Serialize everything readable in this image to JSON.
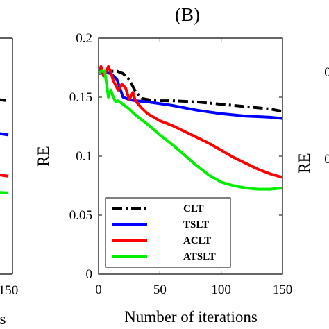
{
  "chart_data": [
    {
      "type": "line",
      "panel_label": "",
      "xlabel": "",
      "ylabel": "",
      "xlim": [
        null,
        150
      ],
      "x_tick_labels": [
        "150"
      ],
      "series": [
        {
          "color": "#000000",
          "dash": "dashdot",
          "points": [
            [
              100,
              0.15
            ],
            [
              150,
              0.147
            ]
          ]
        },
        {
          "color": "#0000ff",
          "dash": "solid",
          "points": [
            [
              100,
              0.122
            ],
            [
              150,
              0.118
            ]
          ]
        },
        {
          "color": "#ff0000",
          "dash": "solid",
          "points": [
            [
              100,
              0.087
            ],
            [
              150,
              0.083
            ]
          ]
        },
        {
          "color": "#00ee00",
          "dash": "solid",
          "points": [
            [
              100,
              0.07
            ],
            [
              150,
              0.069
            ]
          ]
        }
      ],
      "note_partial_xlabel": "s"
    },
    {
      "type": "line",
      "panel_label": "(B)",
      "xlabel": "Number of iterations",
      "ylabel": "RE",
      "xlim": [
        0,
        150
      ],
      "ylim": [
        0,
        0.2
      ],
      "x_ticks": [
        0,
        50,
        100,
        150
      ],
      "y_ticks": [
        0,
        0.05,
        0.1,
        0.15,
        0.2
      ],
      "x_tick_labels": [
        "0",
        "50",
        "100",
        "150"
      ],
      "y_tick_labels": [
        "0",
        "0.05",
        "0.1",
        "0.15",
        "0.2"
      ],
      "legend": {
        "position": "lower-left"
      },
      "series": [
        {
          "name": "CLT",
          "color": "#000000",
          "dash": "dashdot",
          "points": [
            [
              0,
              0.17
            ],
            [
              5,
              0.172
            ],
            [
              10,
              0.172
            ],
            [
              15,
              0.172
            ],
            [
              20,
              0.17
            ],
            [
              25,
              0.165
            ],
            [
              30,
              0.155
            ],
            [
              35,
              0.149
            ],
            [
              45,
              0.147
            ],
            [
              60,
              0.147
            ],
            [
              80,
              0.146
            ],
            [
              100,
              0.144
            ],
            [
              120,
              0.142
            ],
            [
              140,
              0.14
            ],
            [
              150,
              0.138
            ]
          ]
        },
        {
          "name": "TSLT",
          "color": "#0000ff",
          "dash": "solid",
          "points": [
            [
              0,
              0.17
            ],
            [
              5,
              0.171
            ],
            [
              10,
              0.17
            ],
            [
              15,
              0.165
            ],
            [
              20,
              0.15
            ],
            [
              25,
              0.148
            ],
            [
              30,
              0.147
            ],
            [
              40,
              0.146
            ],
            [
              60,
              0.143
            ],
            [
              80,
              0.139
            ],
            [
              100,
              0.136
            ],
            [
              120,
              0.134
            ],
            [
              140,
              0.133
            ],
            [
              150,
              0.132
            ]
          ]
        },
        {
          "name": "ACLT",
          "color": "#ff0000",
          "dash": "solid",
          "points": [
            [
              0,
              0.17
            ],
            [
              2,
              0.176
            ],
            [
              4,
              0.168
            ],
            [
              6,
              0.171
            ],
            [
              8,
              0.176
            ],
            [
              10,
              0.171
            ],
            [
              12,
              0.164
            ],
            [
              14,
              0.16
            ],
            [
              16,
              0.156
            ],
            [
              19,
              0.161
            ],
            [
              22,
              0.158
            ],
            [
              25,
              0.148
            ],
            [
              28,
              0.154
            ],
            [
              30,
              0.147
            ],
            [
              35,
              0.141
            ],
            [
              40,
              0.136
            ],
            [
              50,
              0.13
            ],
            [
              60,
              0.126
            ],
            [
              70,
              0.121
            ],
            [
              80,
              0.116
            ],
            [
              90,
              0.111
            ],
            [
              100,
              0.105
            ],
            [
              110,
              0.099
            ],
            [
              120,
              0.094
            ],
            [
              130,
              0.089
            ],
            [
              140,
              0.085
            ],
            [
              150,
              0.082
            ]
          ]
        },
        {
          "name": "ATSLT",
          "color": "#00ee00",
          "dash": "solid",
          "points": [
            [
              0,
              0.17
            ],
            [
              2,
              0.172
            ],
            [
              5,
              0.172
            ],
            [
              7,
              0.158
            ],
            [
              8,
              0.15
            ],
            [
              10,
              0.156
            ],
            [
              12,
              0.15
            ],
            [
              14,
              0.146
            ],
            [
              16,
              0.147
            ],
            [
              20,
              0.144
            ],
            [
              25,
              0.14
            ],
            [
              30,
              0.135
            ],
            [
              40,
              0.127
            ],
            [
              50,
              0.118
            ],
            [
              60,
              0.11
            ],
            [
              70,
              0.101
            ],
            [
              80,
              0.092
            ],
            [
              90,
              0.084
            ],
            [
              100,
              0.078
            ],
            [
              110,
              0.075
            ],
            [
              120,
              0.073
            ],
            [
              130,
              0.072
            ],
            [
              140,
              0.072
            ],
            [
              150,
              0.073
            ]
          ]
        }
      ]
    },
    {
      "type": "line",
      "panel_label": "",
      "ylabel": "RE",
      "y_tick_labels": [
        "0",
        "0"
      ],
      "series": []
    }
  ]
}
